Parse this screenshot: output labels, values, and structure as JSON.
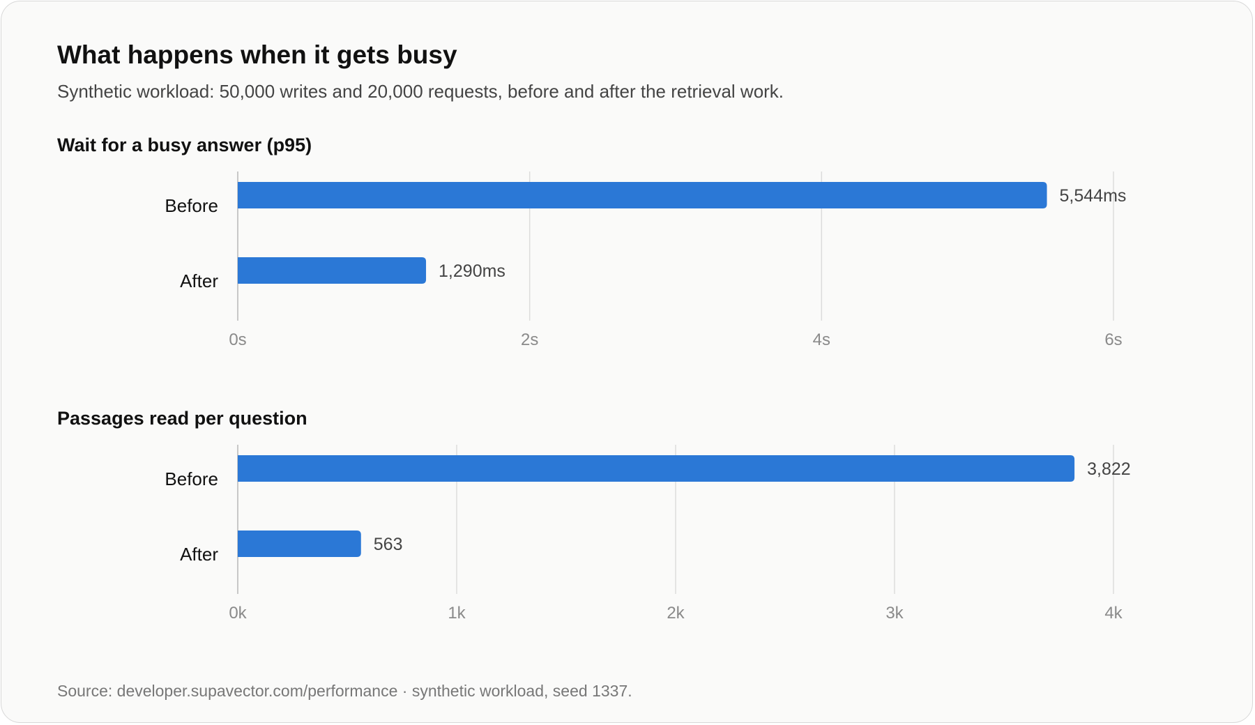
{
  "title": "What happens when it gets busy",
  "subtitle": "Synthetic workload: 50,000 writes and 20,000 requests, before and after the retrieval work.",
  "footer": "Source: developer.supavector.com/performance · synthetic workload, seed 1337.",
  "colors": {
    "bar": "#2b78d6",
    "grid": "#dcdcdc",
    "axis": "#b8b8b8",
    "tick_text": "#8a8a8a",
    "value_text": "#444444",
    "category_text": "#111111"
  },
  "chart_data": [
    {
      "type": "bar",
      "orientation": "horizontal",
      "title": "Wait for a busy answer (p95)",
      "categories": [
        "Before",
        "After"
      ],
      "values": [
        5544,
        1290
      ],
      "value_labels": [
        "5,544ms",
        "1,290ms"
      ],
      "unit": "ms",
      "xlim": [
        0,
        6000
      ],
      "x_ticks": [
        0,
        2000,
        4000,
        6000
      ],
      "x_tick_labels": [
        "0s",
        "2s",
        "4s",
        "6s"
      ],
      "grid": true
    },
    {
      "type": "bar",
      "orientation": "horizontal",
      "title": "Passages read per question",
      "categories": [
        "Before",
        "After"
      ],
      "values": [
        3822,
        563
      ],
      "value_labels": [
        "3,822",
        "563"
      ],
      "xlim": [
        0,
        4000
      ],
      "x_ticks": [
        0,
        1000,
        2000,
        3000,
        4000
      ],
      "x_tick_labels": [
        "0k",
        "1k",
        "2k",
        "3k",
        "4k"
      ],
      "grid": true
    }
  ]
}
